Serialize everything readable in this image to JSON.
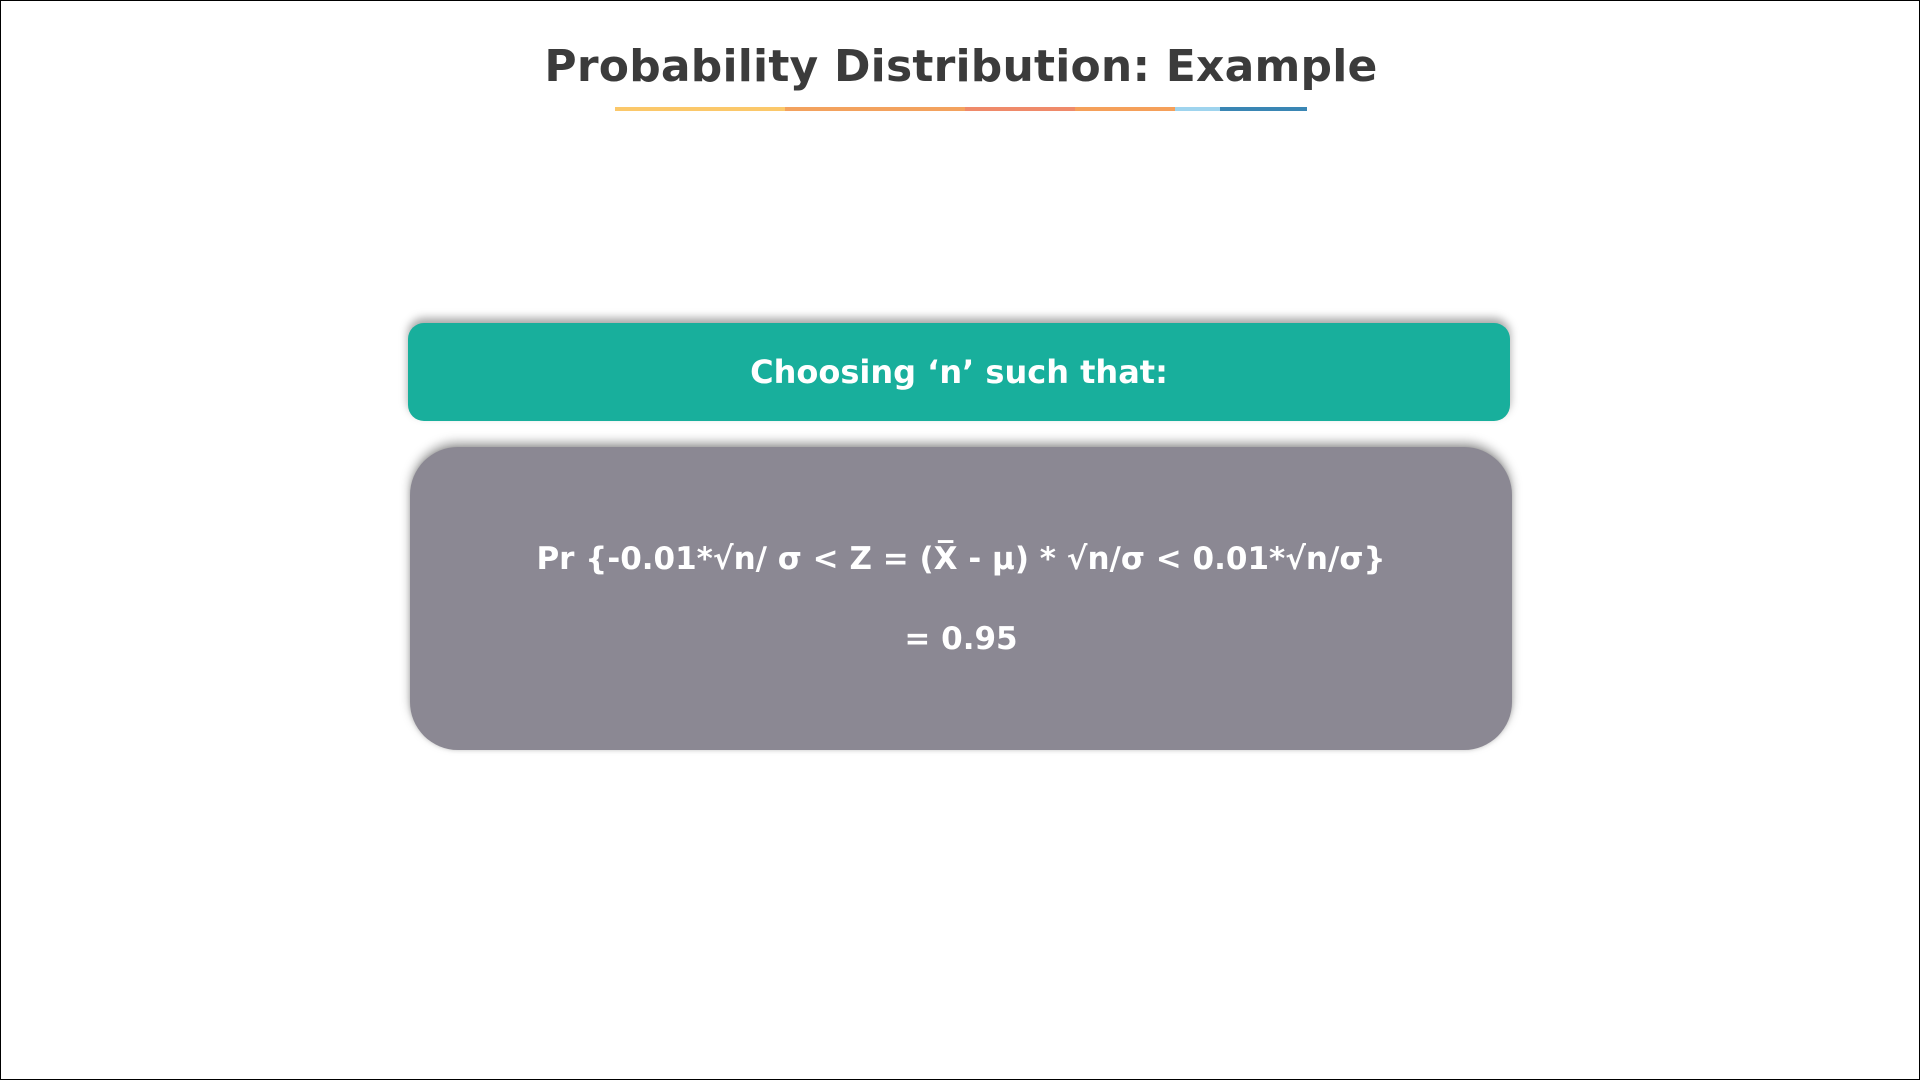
{
  "slide": {
    "title": "Probability Distribution: Example",
    "underline_colors": [
      "#fbc86a",
      "#f3a25e",
      "#ef8a6a",
      "#f5a05a",
      "#9fd4ee",
      "#3a86b4"
    ],
    "header": {
      "text": "Choosing ‘n’ such that:",
      "color": "#18af9c"
    },
    "formula": {
      "line1": "Pr {-0.01*√n/ σ < Z = (X̅ - μ) * √n/σ < 0.01*√n/σ}",
      "line2": "= 0.95",
      "color": "#8b8893"
    }
  }
}
